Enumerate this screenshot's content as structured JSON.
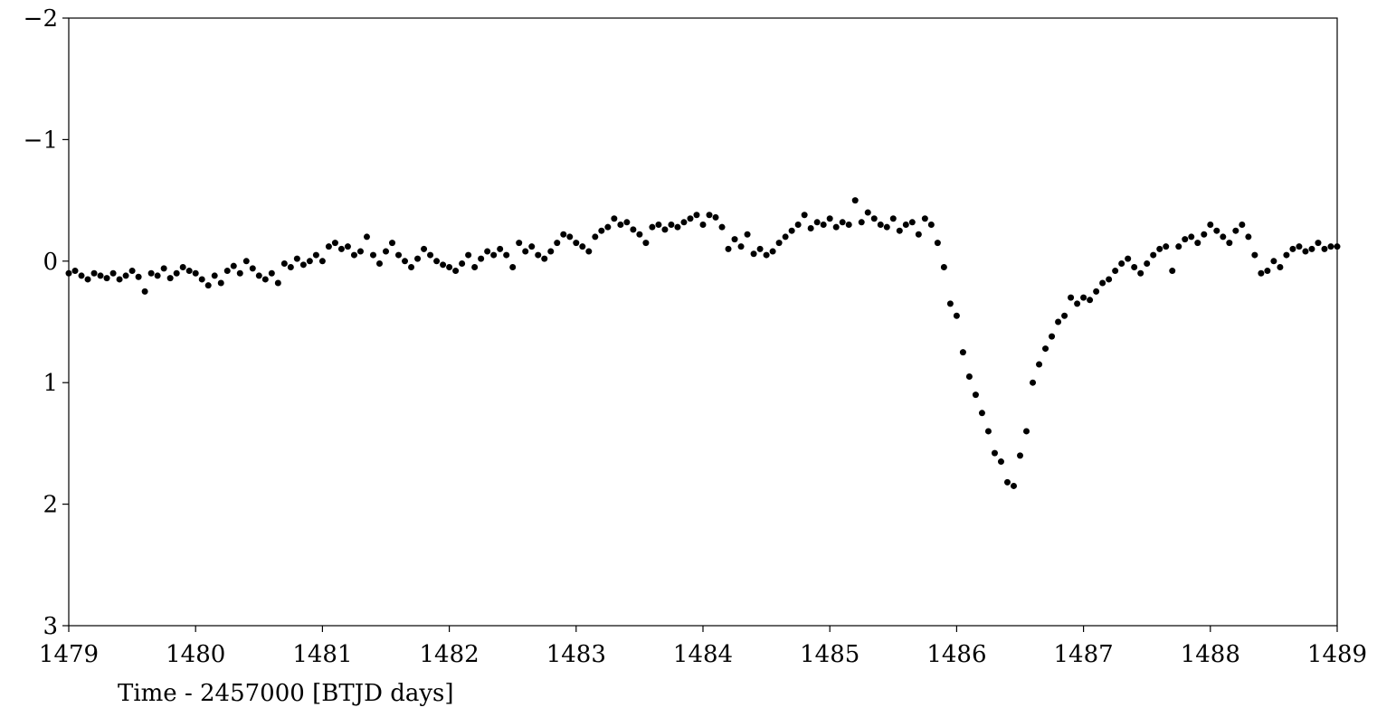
{
  "chart_data": {
    "type": "scatter",
    "x_label": "Time - 2457000 [BTJD days]",
    "color": "#000000",
    "xlim": [
      1479,
      1489
    ],
    "xticks": [
      1479,
      1480,
      1481,
      1482,
      1483,
      1484,
      1485,
      1486,
      1487,
      1488,
      1489
    ],
    "ylim": [
      3,
      -2
    ],
    "yticks": [
      {
        "value": -2,
        "label": "−2"
      },
      {
        "value": -1,
        "label": "−1"
      },
      0,
      1,
      2,
      3
    ],
    "x": [
      1479.0,
      1479.05,
      1479.1,
      1479.15,
      1479.2,
      1479.25,
      1479.3,
      1479.35,
      1479.4,
      1479.45,
      1479.5,
      1479.55,
      1479.6,
      1479.65,
      1479.7,
      1479.75,
      1479.8,
      1479.85,
      1479.9,
      1479.95,
      1480.0,
      1480.05,
      1480.1,
      1480.15,
      1480.2,
      1480.25,
      1480.3,
      1480.35,
      1480.4,
      1480.45,
      1480.5,
      1480.55,
      1480.6,
      1480.65,
      1480.7,
      1480.75,
      1480.8,
      1480.85,
      1480.9,
      1480.95,
      1481.0,
      1481.05,
      1481.1,
      1481.15,
      1481.2,
      1481.25,
      1481.3,
      1481.35,
      1481.4,
      1481.45,
      1481.5,
      1481.55,
      1481.6,
      1481.65,
      1481.7,
      1481.75,
      1481.8,
      1481.85,
      1481.9,
      1481.95,
      1482.0,
      1482.05,
      1482.1,
      1482.15,
      1482.2,
      1482.25,
      1482.3,
      1482.35,
      1482.4,
      1482.45,
      1482.5,
      1482.55,
      1482.6,
      1482.65,
      1482.7,
      1482.75,
      1482.8,
      1482.85,
      1482.9,
      1482.95,
      1483.0,
      1483.05,
      1483.1,
      1483.15,
      1483.2,
      1483.25,
      1483.3,
      1483.35,
      1483.4,
      1483.45,
      1483.5,
      1483.55,
      1483.6,
      1483.65,
      1483.7,
      1483.75,
      1483.8,
      1483.85,
      1483.9,
      1483.95,
      1484.0,
      1484.05,
      1484.1,
      1484.15,
      1484.2,
      1484.25,
      1484.3,
      1484.35,
      1484.4,
      1484.45,
      1484.5,
      1484.55,
      1484.6,
      1484.65,
      1484.7,
      1484.75,
      1484.8,
      1484.85,
      1484.9,
      1484.95,
      1485.0,
      1485.05,
      1485.1,
      1485.15,
      1485.2,
      1485.25,
      1485.3,
      1485.35,
      1485.4,
      1485.45,
      1485.5,
      1485.55,
      1485.6,
      1485.65,
      1485.7,
      1485.75,
      1485.8,
      1485.85,
      1485.9,
      1485.95,
      1486.0,
      1486.05,
      1486.1,
      1486.15,
      1486.2,
      1486.25,
      1486.3,
      1486.35,
      1486.4,
      1486.45,
      1486.5,
      1486.55,
      1486.6,
      1486.65,
      1486.7,
      1486.75,
      1486.8,
      1486.85,
      1486.9,
      1486.95,
      1487.0,
      1487.05,
      1487.1,
      1487.15,
      1487.2,
      1487.25,
      1487.3,
      1487.35,
      1487.4,
      1487.45,
      1487.5,
      1487.55,
      1487.6,
      1487.65,
      1487.7,
      1487.75,
      1487.8,
      1487.85,
      1487.9,
      1487.95,
      1488.0,
      1488.05,
      1488.1,
      1488.15,
      1488.2,
      1488.25,
      1488.3,
      1488.35,
      1488.4,
      1488.45,
      1488.5,
      1488.55,
      1488.6,
      1488.65,
      1488.7,
      1488.75,
      1488.8,
      1488.85,
      1488.9,
      1488.95,
      1489.0
    ],
    "values": [
      0.1,
      0.08,
      0.12,
      0.15,
      0.1,
      0.12,
      0.14,
      0.1,
      0.15,
      0.12,
      0.08,
      0.13,
      0.25,
      0.1,
      0.12,
      0.06,
      0.14,
      0.1,
      0.05,
      0.08,
      0.1,
      0.15,
      0.2,
      0.12,
      0.18,
      0.08,
      0.04,
      0.1,
      0.0,
      0.06,
      0.12,
      0.15,
      0.1,
      0.18,
      0.02,
      0.05,
      -0.02,
      0.03,
      0.0,
      -0.05,
      0.0,
      -0.12,
      -0.15,
      -0.1,
      -0.12,
      -0.05,
      -0.08,
      -0.2,
      -0.05,
      0.02,
      -0.08,
      -0.15,
      -0.05,
      0.0,
      0.05,
      -0.02,
      -0.1,
      -0.05,
      0.0,
      0.03,
      0.05,
      0.08,
      0.02,
      -0.05,
      0.05,
      -0.02,
      -0.08,
      -0.05,
      -0.1,
      -0.05,
      0.05,
      -0.15,
      -0.08,
      -0.12,
      -0.05,
      -0.02,
      -0.08,
      -0.15,
      -0.22,
      -0.2,
      -0.15,
      -0.12,
      -0.08,
      -0.2,
      -0.25,
      -0.28,
      -0.35,
      -0.3,
      -0.32,
      -0.26,
      -0.22,
      -0.15,
      -0.28,
      -0.3,
      -0.26,
      -0.3,
      -0.28,
      -0.32,
      -0.35,
      -0.38,
      -0.3,
      -0.38,
      -0.36,
      -0.28,
      -0.1,
      -0.18,
      -0.12,
      -0.22,
      -0.06,
      -0.1,
      -0.05,
      -0.08,
      -0.15,
      -0.2,
      -0.25,
      -0.3,
      -0.38,
      -0.27,
      -0.32,
      -0.3,
      -0.35,
      -0.28,
      -0.32,
      -0.3,
      -0.5,
      -0.32,
      -0.4,
      -0.35,
      -0.3,
      -0.28,
      -0.35,
      -0.25,
      -0.3,
      -0.32,
      -0.22,
      -0.35,
      -0.3,
      -0.15,
      0.05,
      0.35,
      0.45,
      0.75,
      0.95,
      1.1,
      1.25,
      1.4,
      1.58,
      1.65,
      1.82,
      1.85,
      1.6,
      1.4,
      1.0,
      0.85,
      0.72,
      0.62,
      0.5,
      0.45,
      0.3,
      0.35,
      0.3,
      0.32,
      0.25,
      0.18,
      0.15,
      0.08,
      0.02,
      -0.02,
      0.05,
      0.1,
      0.02,
      -0.05,
      -0.1,
      -0.12,
      0.08,
      -0.12,
      -0.18,
      -0.2,
      -0.15,
      -0.22,
      -0.3,
      -0.25,
      -0.2,
      -0.15,
      -0.25,
      -0.3,
      -0.2,
      -0.05,
      0.1,
      0.08,
      0.0,
      0.05,
      -0.05,
      -0.1,
      -0.12,
      -0.08,
      -0.1,
      -0.15,
      -0.1,
      -0.12,
      -0.12
    ]
  }
}
